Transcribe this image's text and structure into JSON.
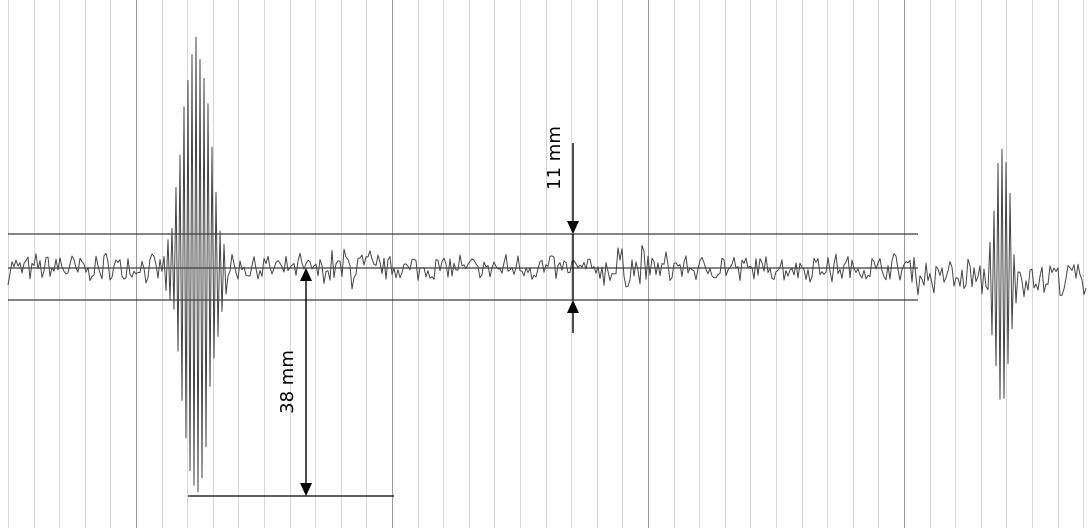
{
  "annotations": {
    "amplitude_label": "11 mm",
    "offset_label": "38 mm"
  },
  "colors": {
    "grid": "#d6d6d6",
    "grid_major": "#9a9a9a",
    "trace": "#444444",
    "annotation": "#000000"
  }
}
